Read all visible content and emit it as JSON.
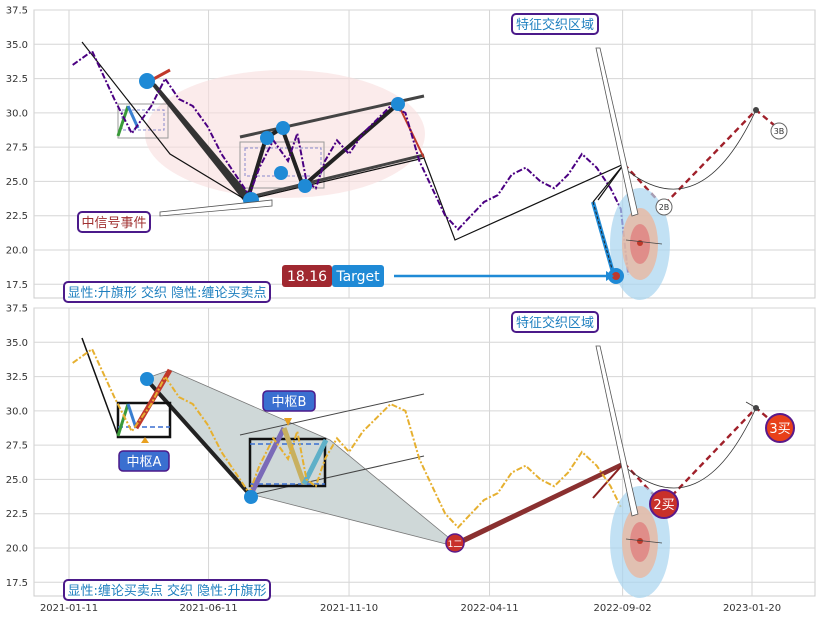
{
  "chart_data": [
    {
      "type": "line",
      "panel": "top",
      "ylim": [
        16.5,
        37.5
      ],
      "yticks": [
        "17.5",
        "20.0",
        "22.5",
        "25.0",
        "27.5",
        "30.0",
        "32.5",
        "35.0",
        "37.5"
      ],
      "price_color": "#4b0082",
      "series": [
        {
          "x": [
            "2021-01-15",
            "2021-02-05",
            "2021-03-01",
            "2021-03-20",
            "2021-04-10",
            "2021-04-25",
            "2021-05-10",
            "2021-05-25",
            "2021-06-10",
            "2021-06-25",
            "2021-07-10",
            "2021-07-25",
            "2021-08-05",
            "2021-08-20",
            "2021-09-05",
            "2021-09-15",
            "2021-09-25",
            "2021-10-05",
            "2021-10-15",
            "2021-10-28",
            "2021-11-10",
            "2021-11-25",
            "2021-12-10",
            "2021-12-25",
            "2022-01-10",
            "2022-01-25",
            "2022-02-08",
            "2022-02-22",
            "2022-03-08",
            "2022-03-22",
            "2022-04-05",
            "2022-04-20",
            "2022-05-05",
            "2022-05-20",
            "2022-06-05",
            "2022-06-20",
            "2022-07-05",
            "2022-07-20",
            "2022-08-05",
            "2022-08-20",
            "2022-08-31",
            "2022-09-08"
          ],
          "values": [
            33.5,
            34.5,
            31.0,
            28.5,
            30.5,
            32.5,
            31.0,
            30.5,
            29.0,
            27.0,
            25.5,
            24.0,
            26.0,
            28.0,
            26.5,
            28.5,
            25.0,
            24.5,
            26.5,
            28.0,
            27.0,
            28.5,
            29.5,
            30.5,
            30.0,
            26.5,
            24.5,
            22.5,
            21.5,
            22.5,
            23.5,
            24.0,
            25.5,
            26.0,
            25.0,
            24.5,
            25.5,
            27.0,
            26.0,
            24.5,
            23.0,
            18.2
          ]
        }
      ],
      "annotations": {
        "title_box": "特征交织区域",
        "signal_box": "中信号事件",
        "legend_box": "显性:升旗形 交织 隐性:缠论买卖点",
        "target_value": "18.16",
        "target_label": "Target",
        "marker_2b": "2B",
        "marker_3b": "3B"
      }
    },
    {
      "type": "line",
      "panel": "bottom",
      "ylim": [
        16.5,
        37.5
      ],
      "yticks": [
        "17.5",
        "20.0",
        "22.5",
        "25.0",
        "27.5",
        "30.0",
        "32.5",
        "35.0",
        "37.5"
      ],
      "price_color": "#e6b030",
      "series": [
        {
          "x": [
            "2021-01-15",
            "2021-02-05",
            "2021-03-01",
            "2021-03-20",
            "2021-04-10",
            "2021-04-25",
            "2021-05-10",
            "2021-05-25",
            "2021-06-10",
            "2021-06-25",
            "2021-07-10",
            "2021-07-25",
            "2021-08-05",
            "2021-08-20",
            "2021-09-05",
            "2021-09-15",
            "2021-09-25",
            "2021-10-05",
            "2021-10-15",
            "2021-10-28",
            "2021-11-10",
            "2021-11-25",
            "2021-12-10",
            "2021-12-25",
            "2022-01-10",
            "2022-01-25",
            "2022-02-08",
            "2022-02-22",
            "2022-03-08",
            "2022-03-22",
            "2022-04-05",
            "2022-04-20",
            "2022-05-05",
            "2022-05-20",
            "2022-06-05",
            "2022-06-20",
            "2022-07-05",
            "2022-07-20",
            "2022-08-05",
            "2022-08-20",
            "2022-08-31"
          ],
          "values": [
            33.5,
            34.5,
            31.0,
            28.5,
            30.5,
            32.5,
            31.0,
            30.5,
            29.0,
            27.0,
            25.5,
            24.0,
            26.0,
            28.0,
            26.5,
            28.5,
            25.0,
            24.5,
            26.5,
            28.0,
            27.0,
            28.5,
            29.5,
            30.5,
            30.0,
            26.5,
            24.5,
            22.5,
            21.5,
            22.5,
            23.5,
            24.0,
            25.5,
            26.0,
            25.0,
            24.5,
            25.5,
            27.0,
            26.0,
            24.5,
            23.0
          ]
        }
      ],
      "annotations": {
        "title_box": "特征交织区域",
        "legend_box": "显性:缠论买卖点 交织 隐性:升旗形",
        "zhongshu_a": "中枢A",
        "zhongshu_b": "中枢B",
        "buy1": "1二",
        "buy2": "2买",
        "buy3": "3买"
      }
    }
  ],
  "xticks": [
    "2021-01-11",
    "2021-06-11",
    "2021-11-10",
    "2022-04-11",
    "2022-09-02",
    "2023-01-20"
  ]
}
